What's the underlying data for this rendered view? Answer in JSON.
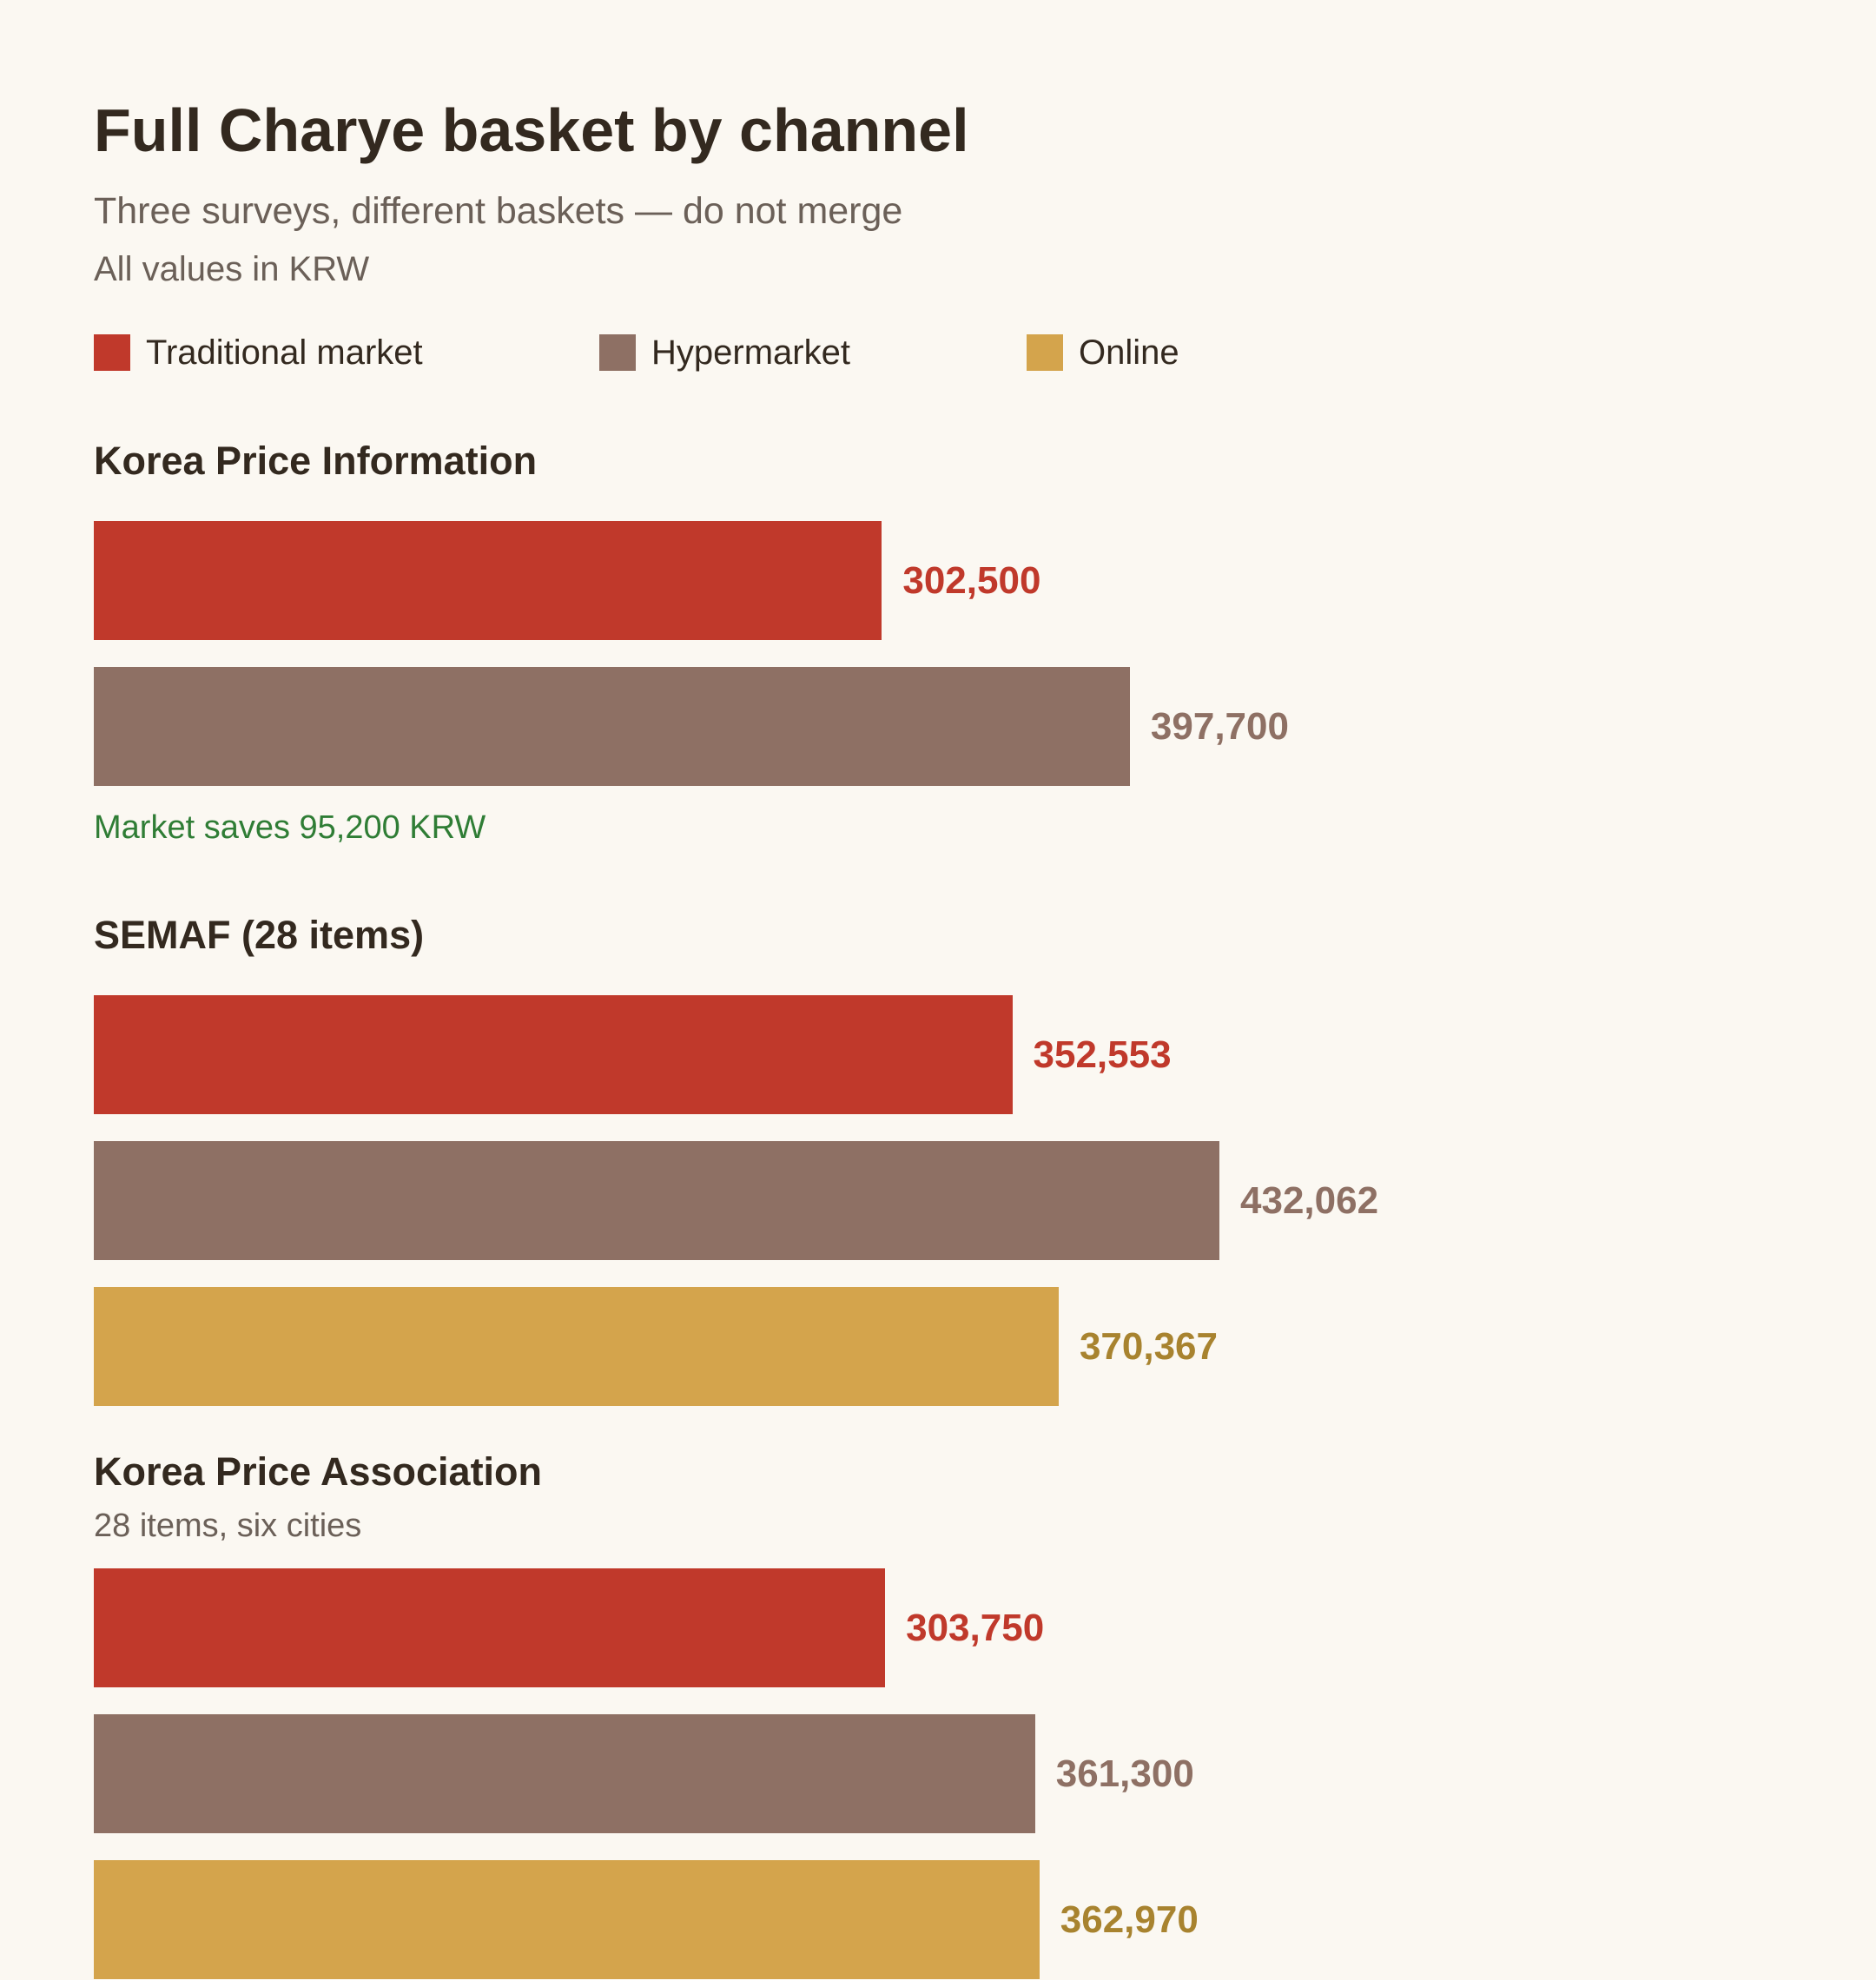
{
  "chart_data": {
    "type": "bar",
    "orientation": "horizontal",
    "title": "Full Charye basket by channel",
    "subtitle": "Three surveys, different baskets — do not merge",
    "units_note": "All values in KRW",
    "xlabel": "",
    "ylabel": "",
    "legend": [
      {
        "key": "traditional",
        "label": "Traditional market",
        "color": "#c0392b",
        "value_color": "#c0392b"
      },
      {
        "key": "hyper",
        "label": "Hypermarket",
        "color": "#8e7064",
        "value_color": "#8e7064"
      },
      {
        "key": "online",
        "label": "Online",
        "color": "#d4a44c",
        "value_color": "#a8832f"
      }
    ],
    "groups": [
      {
        "title": "Korea Price Information",
        "note": "Market saves 95,200 KRW",
        "bars": [
          {
            "channel": "traditional",
            "value": 302500,
            "label": "302,500"
          },
          {
            "channel": "hyper",
            "value": 397700,
            "label": "397,700"
          }
        ]
      },
      {
        "title": "SEMAF (28 items)",
        "bars": [
          {
            "channel": "traditional",
            "value": 352553,
            "label": "352,553"
          },
          {
            "channel": "hyper",
            "value": 432062,
            "label": "432,062"
          },
          {
            "channel": "online",
            "value": 370367,
            "label": "370,367"
          }
        ]
      },
      {
        "title": "Korea Price Association",
        "subtitle": "28 items, six cities",
        "bars": [
          {
            "channel": "traditional",
            "value": 303750,
            "label": "303,750"
          },
          {
            "channel": "hyper",
            "value": 361300,
            "label": "361,300"
          },
          {
            "channel": "online",
            "value": 362970,
            "label": "362,970"
          }
        ]
      }
    ]
  }
}
